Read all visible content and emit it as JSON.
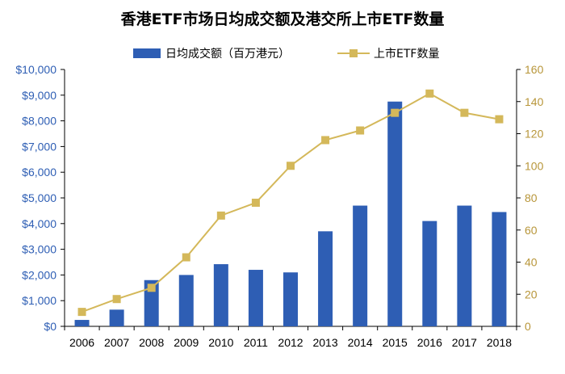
{
  "chart_data": {
    "type": "bar+line",
    "title": "香港ETF市场日均成交额及港交所上市ETF数量",
    "categories": [
      "2006",
      "2007",
      "2008",
      "2009",
      "2010",
      "2011",
      "2012",
      "2013",
      "2014",
      "2015",
      "2016",
      "2017",
      "2018"
    ],
    "series": [
      {
        "name": "日均成交额（百万港元）",
        "type": "bar",
        "axis": "left",
        "color": "#2E5EB4",
        "values": [
          250,
          650,
          1800,
          2000,
          2420,
          2200,
          2100,
          3700,
          4700,
          8750,
          4100,
          4700,
          4450
        ]
      },
      {
        "name": "上市ETF数量",
        "type": "line",
        "axis": "right",
        "color": "#D4B85A",
        "values": [
          9,
          17,
          24,
          43,
          69,
          77,
          100,
          116,
          122,
          133,
          145,
          133,
          129
        ]
      }
    ],
    "left_axis": {
      "ylim": [
        0,
        10000
      ],
      "tick_labels": [
        "$0",
        "$1,000",
        "$2,000",
        "$3,000",
        "$4,000",
        "$5,000",
        "$6,000",
        "$7,000",
        "$8,000",
        "$9,000",
        "$10,000"
      ],
      "color": "#2E5EB4"
    },
    "right_axis": {
      "ylim": [
        0,
        160
      ],
      "tick_labels": [
        "0",
        "20",
        "40",
        "60",
        "80",
        "100",
        "120",
        "140",
        "160"
      ],
      "color": "#B8963A"
    },
    "legend": {
      "placement": "top-center",
      "entries": [
        "日均成交额（百万港元）",
        "上市ETF数量"
      ]
    },
    "grid": false
  }
}
